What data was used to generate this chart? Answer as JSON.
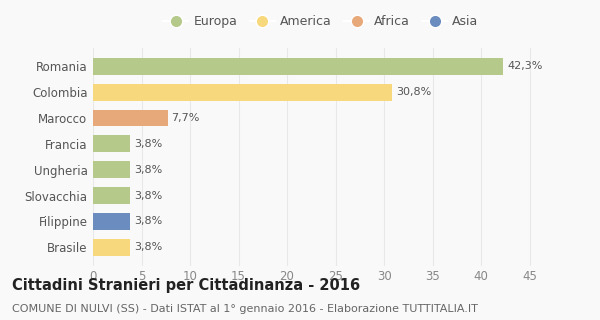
{
  "categories": [
    "Romania",
    "Colombia",
    "Marocco",
    "Francia",
    "Ungheria",
    "Slovacchia",
    "Filippine",
    "Brasile"
  ],
  "values": [
    42.3,
    30.8,
    7.7,
    3.8,
    3.8,
    3.8,
    3.8,
    3.8
  ],
  "labels": [
    "42,3%",
    "30,8%",
    "7,7%",
    "3,8%",
    "3,8%",
    "3,8%",
    "3,8%",
    "3,8%"
  ],
  "colors": [
    "#b5c98a",
    "#f7d87c",
    "#e8a97a",
    "#b5c98a",
    "#b5c98a",
    "#b5c98a",
    "#6b8cbf",
    "#f7d87c"
  ],
  "legend_labels": [
    "Europa",
    "America",
    "Africa",
    "Asia"
  ],
  "legend_colors": [
    "#b5c98a",
    "#f7d87c",
    "#e8a97a",
    "#6b8cbf"
  ],
  "title": "Cittadini Stranieri per Cittadinanza - 2016",
  "subtitle": "COMUNE DI NULVI (SS) - Dati ISTAT al 1° gennaio 2016 - Elaborazione TUTTITALIA.IT",
  "xlim": [
    0,
    47
  ],
  "xticks": [
    0,
    5,
    10,
    15,
    20,
    25,
    30,
    35,
    40,
    45
  ],
  "background_color": "#f9f9f9",
  "grid_color": "#e8e8e8",
  "title_fontsize": 10.5,
  "subtitle_fontsize": 8,
  "tick_fontsize": 8.5,
  "label_fontsize": 8
}
